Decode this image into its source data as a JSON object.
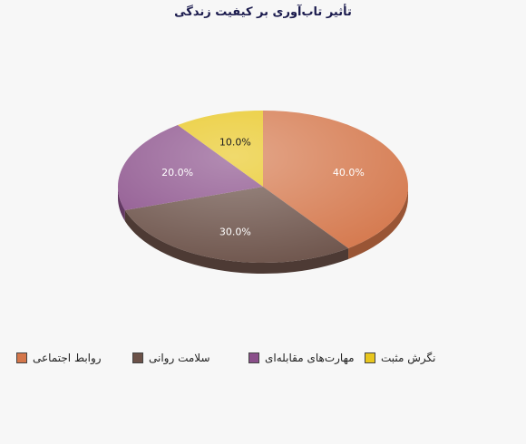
{
  "chart_data": {
    "type": "pie",
    "title": "تأثیر تاب‌آوری بر کیفیت زندگی",
    "categories": [
      "روابط اجتماعی",
      "سلامت روانی",
      "مهارت‌های  مقابله‌ای",
      "نگرش مثبت"
    ],
    "values": [
      40,
      30,
      20,
      10
    ],
    "data_labels": [
      "40.0%",
      "30.0%",
      "20.0%",
      "10.0%"
    ],
    "colors": [
      "#d4764a",
      "#6b5148",
      "#8a4f8a",
      "#e8c61e"
    ],
    "legend_position": "bottom",
    "style": "3d"
  }
}
